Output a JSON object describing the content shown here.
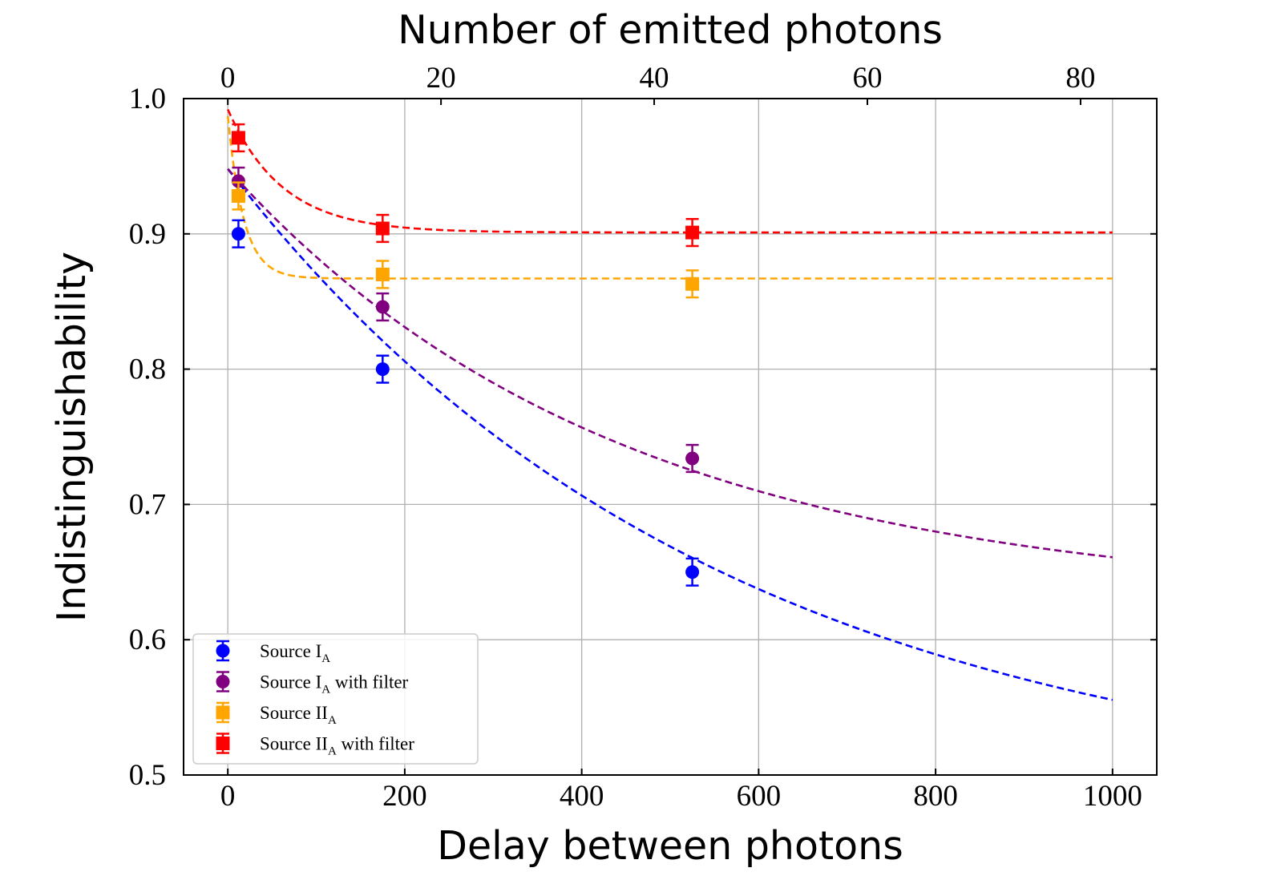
{
  "chart_data": {
    "type": "scatter",
    "xlabel": "Delay between photons",
    "x2label": "Number of emitted photons",
    "ylabel": "Indistinguishability",
    "xlim": [
      -50,
      1050
    ],
    "ylim": [
      0.5,
      1.0
    ],
    "x2lim": [
      -4.15,
      87.15
    ],
    "x_ticks": [
      0,
      200,
      400,
      600,
      800,
      1000
    ],
    "x2_ticks": [
      0,
      20,
      40,
      60,
      80
    ],
    "y_ticks": [
      0.5,
      0.6,
      0.7,
      0.8,
      0.9,
      1.0
    ],
    "grid": true,
    "legend_position": "lower-left",
    "series": [
      {
        "name": "Source I",
        "name_sub": "A",
        "name_suffix": "",
        "color": "#0000ff",
        "marker": "circle",
        "x": [
          12,
          175,
          525
        ],
        "y": [
          0.9,
          0.8,
          0.65
        ],
        "yerr": [
          0.01,
          0.01,
          0.01
        ],
        "fit": {
          "type": "exp",
          "a": 0.47,
          "tau": 555,
          "c": 0.478,
          "x_start": 0,
          "x_end": 1000
        }
      },
      {
        "name": "Source I",
        "name_sub": "A",
        "name_suffix": " with filter",
        "color": "#800080",
        "marker": "circle",
        "x": [
          12,
          175,
          525
        ],
        "y": [
          0.939,
          0.846,
          0.734
        ],
        "yerr": [
          0.01,
          0.01,
          0.01
        ],
        "fit": {
          "type": "exp",
          "a": 0.32,
          "tau": 440,
          "c": 0.628,
          "x_start": 0,
          "x_end": 1000
        }
      },
      {
        "name": "Source II",
        "name_sub": "A",
        "name_suffix": "",
        "color": "#ffa500",
        "marker": "square",
        "x": [
          12,
          175,
          525
        ],
        "y": [
          0.928,
          0.87,
          0.863
        ],
        "yerr": [
          0.01,
          0.01,
          0.01
        ],
        "fit": {
          "type": "exp",
          "a": 0.12,
          "tau": 18,
          "c": 0.867,
          "x_start": 0,
          "x_end": 1000
        }
      },
      {
        "name": "Source II",
        "name_sub": "A",
        "name_suffix": " with filter",
        "color": "#ff0000",
        "marker": "square",
        "x": [
          12,
          175,
          525
        ],
        "y": [
          0.971,
          0.904,
          0.901
        ],
        "yerr": [
          0.01,
          0.01,
          0.01
        ],
        "fit": {
          "type": "exp",
          "a": 0.091,
          "tau": 62,
          "c": 0.901,
          "x_start": 0,
          "x_end": 1000
        }
      }
    ]
  }
}
